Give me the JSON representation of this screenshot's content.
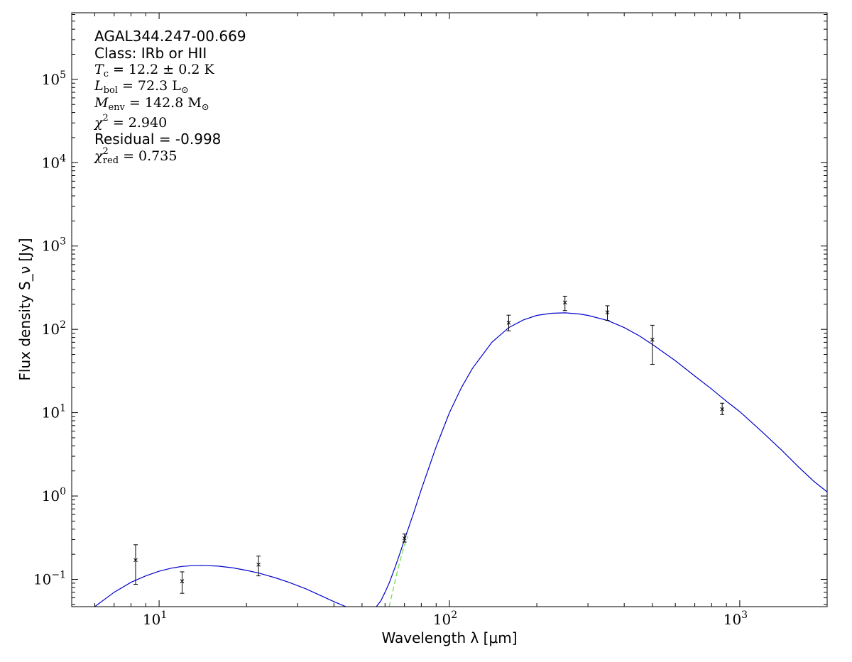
{
  "chart_data": {
    "type": "scatter",
    "xlabel": "Wavelength λ [μm]",
    "ylabel": "Flux density S_ν [Jy]",
    "xscale": "log",
    "yscale": "log",
    "xlim": [
      5,
      2000
    ],
    "ylim": [
      0.047,
      630000
    ],
    "grid": false,
    "x_ticks": [
      {
        "base": "10",
        "exp": "1",
        "value": 10
      },
      {
        "base": "10",
        "exp": "2",
        "value": 100
      },
      {
        "base": "10",
        "exp": "3",
        "value": 1000
      }
    ],
    "y_ticks": [
      {
        "base": "10",
        "exp": "−1",
        "value": 0.1
      },
      {
        "base": "10",
        "exp": "0",
        "value": 1
      },
      {
        "base": "10",
        "exp": "1",
        "value": 10
      },
      {
        "base": "10",
        "exp": "2",
        "value": 100
      },
      {
        "base": "10",
        "exp": "3",
        "value": 1000
      },
      {
        "base": "10",
        "exp": "4",
        "value": 10000
      },
      {
        "base": "10",
        "exp": "5",
        "value": 100000
      }
    ],
    "annotations": {
      "source": "AGAL344.247-00.669",
      "class_line": "Class: IRb or HII",
      "tc": {
        "sym": "T",
        "sub": "c",
        "rest": " = 12.2 ± 0.2 K"
      },
      "lbol": {
        "sym": "L",
        "sub": "bol",
        "rest": " = 72.3 L",
        "rest_sub": "⊙"
      },
      "menv": {
        "sym": "M",
        "sub": "env",
        "rest": " = 142.8 M",
        "rest_sub": "⊙"
      },
      "chi2": {
        "sym": "χ",
        "sup": "2",
        "rest": " = 2.940"
      },
      "residual": "Residual = -0.998",
      "chi2red": {
        "sym": "χ",
        "sup": "2",
        "sub": "red",
        "rest": " = 0.735"
      }
    },
    "points": [
      {
        "x": 8.3,
        "y": 0.17,
        "yerr_low": 0.087,
        "yerr_high": 0.26
      },
      {
        "x": 12.0,
        "y": 0.095,
        "yerr_low": 0.068,
        "yerr_high": 0.123
      },
      {
        "x": 22.0,
        "y": 0.15,
        "yerr_low": 0.11,
        "yerr_high": 0.19
      },
      {
        "x": 70.0,
        "y": 0.31,
        "yerr_low": 0.28,
        "yerr_high": 0.35
      },
      {
        "x": 160.0,
        "y": 120,
        "yerr_low": 96,
        "yerr_high": 148
      },
      {
        "x": 250.0,
        "y": 210,
        "yerr_low": 168,
        "yerr_high": 250
      },
      {
        "x": 350.0,
        "y": 160,
        "yerr_low": 128,
        "yerr_high": 192
      },
      {
        "x": 500.0,
        "y": 75,
        "yerr_low": 38,
        "yerr_high": 112
      },
      {
        "x": 870.0,
        "y": 11,
        "yerr_low": 9.5,
        "yerr_high": 13
      }
    ],
    "series": [
      {
        "color": "#0000cc",
        "style": "solid",
        "x": [
          6.0,
          7.0,
          8.0,
          9.0,
          10.0,
          11.0,
          12.0,
          13.0,
          14.0,
          16.0,
          18.0,
          20.0,
          22.0,
          25.0,
          28.0,
          32.0,
          36.0,
          40.0,
          44.0
        ],
        "y": [
          0.047,
          0.07,
          0.092,
          0.11,
          0.125,
          0.136,
          0.143,
          0.146,
          0.147,
          0.144,
          0.137,
          0.128,
          0.119,
          0.105,
          0.092,
          0.077,
          0.064,
          0.054,
          0.047
        ]
      },
      {
        "color": "#0000cc",
        "style": "solid",
        "x": [
          56,
          58,
          60,
          62,
          65,
          68,
          70,
          75,
          80,
          90,
          100,
          110,
          120,
          140,
          160,
          180,
          200,
          225,
          250,
          280,
          300,
          350,
          400,
          450,
          500,
          600,
          700,
          800,
          900,
          1000,
          1200,
          1400,
          1600,
          1800,
          2000
        ],
        "y": [
          0.047,
          0.055,
          0.07,
          0.09,
          0.14,
          0.22,
          0.3,
          0.6,
          1.2,
          3.9,
          10,
          20,
          34,
          70,
          105,
          130,
          147,
          156,
          158,
          153,
          147,
          128,
          105,
          84,
          66,
          42,
          27.5,
          19.2,
          13.7,
          10.3,
          5.8,
          3.5,
          2.2,
          1.5,
          1.12
        ]
      },
      {
        "color": "#66dd44",
        "style": "dashed",
        "x": [
          62,
          64,
          66,
          68,
          70,
          72
        ],
        "y": [
          0.047,
          0.075,
          0.12,
          0.18,
          0.26,
          0.33
        ]
      }
    ]
  }
}
